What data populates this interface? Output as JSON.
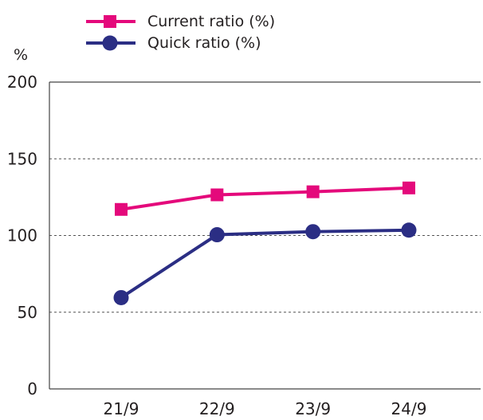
{
  "chart_data": {
    "type": "line",
    "categories": [
      "21/9",
      "22/9",
      "23/9",
      "24/9"
    ],
    "series": [
      {
        "name": "Current ratio (%)",
        "values": [
          117,
          126.5,
          128.5,
          131
        ],
        "color": "#e4097b",
        "marker": "square"
      },
      {
        "name": "Quick ratio (%)",
        "values": [
          59.5,
          100.5,
          102.5,
          103.5
        ],
        "color": "#2b2e84",
        "marker": "circle"
      }
    ],
    "unit_label": "%",
    "ylim": [
      0,
      200
    ],
    "yticks": [
      0,
      50,
      100,
      150,
      200
    ],
    "grid": true,
    "legend_position": "top-left"
  }
}
